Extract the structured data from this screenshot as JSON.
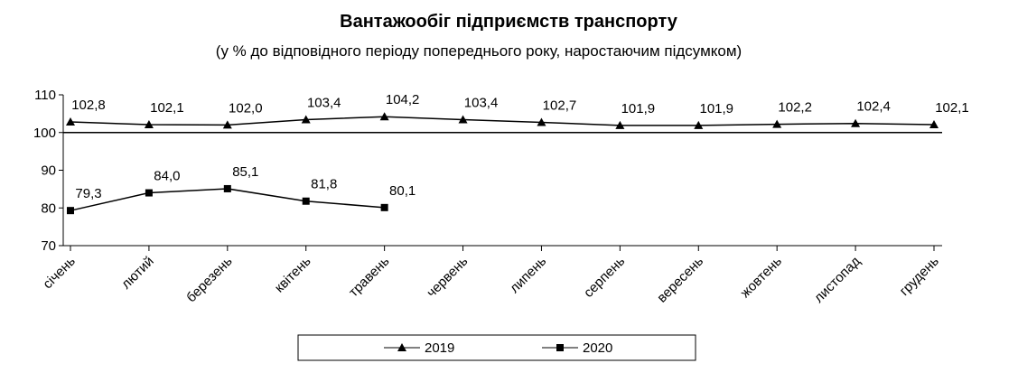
{
  "chart_data": {
    "type": "line",
    "title": "Вантажообіг підприємств транспорту",
    "subtitle": "(у % до відповідного періоду попереднього року, наростаючим підсумком)",
    "categories": [
      "січень",
      "лютий",
      "березень",
      "квітень",
      "травень",
      "червень",
      "липень",
      "серпень",
      "вересень",
      "жовтень",
      "листопад",
      "грудень"
    ],
    "series": [
      {
        "name": "2019",
        "color": "#000000",
        "marker": "triangle",
        "values": [
          102.8,
          102.1,
          102.0,
          103.4,
          104.2,
          103.4,
          102.7,
          101.9,
          101.9,
          102.2,
          102.4,
          102.1
        ],
        "value_labels": [
          "102,8",
          "102,1",
          "102,0",
          "103,4",
          "104,2",
          "103,4",
          "102,7",
          "101,9",
          "101,9",
          "102,2",
          "102,4",
          "102,1"
        ]
      },
      {
        "name": "2020",
        "color": "#000000",
        "marker": "square",
        "values": [
          79.3,
          84.0,
          85.1,
          81.8,
          80.1,
          null,
          null,
          null,
          null,
          null,
          null,
          null
        ],
        "value_labels": [
          "79,3",
          "84,0",
          "85,1",
          "81,8",
          "80,1",
          null,
          null,
          null,
          null,
          null,
          null,
          null
        ]
      }
    ],
    "ylim": [
      70,
      110
    ],
    "yticks": [
      70,
      80,
      90,
      100,
      110
    ],
    "reference_line": 100,
    "legend": "bottom"
  }
}
